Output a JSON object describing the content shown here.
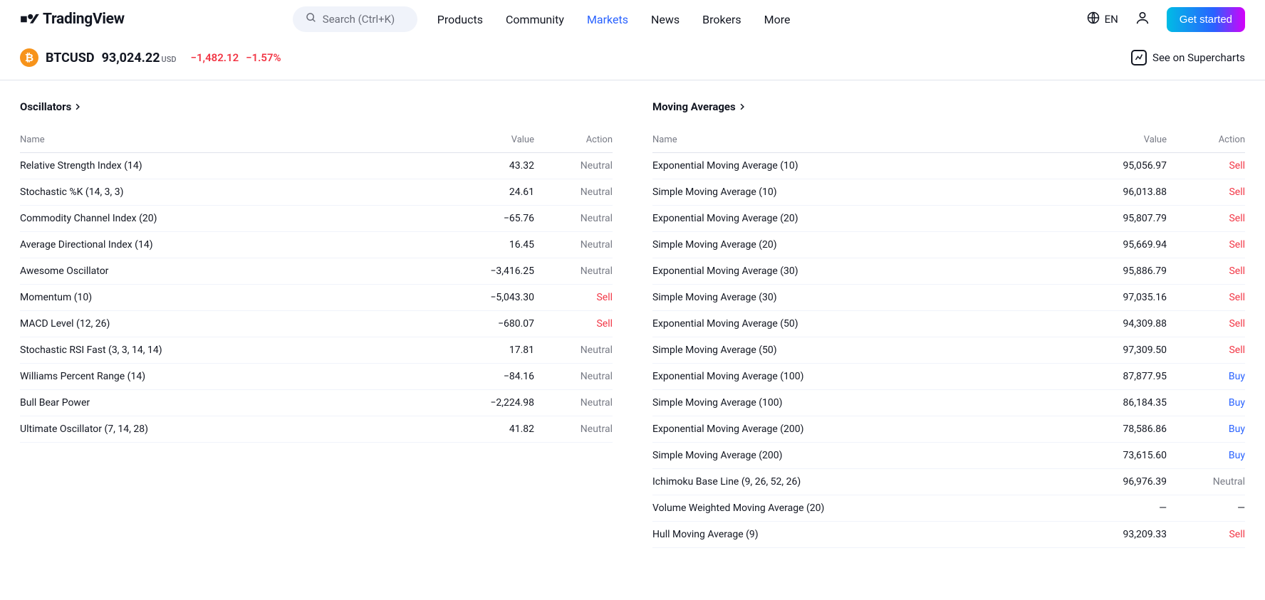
{
  "brand": "TradingView",
  "search": {
    "placeholder": "Search (Ctrl+K)"
  },
  "nav": {
    "products": "Products",
    "community": "Community",
    "markets": "Markets",
    "news": "News",
    "brokers": "Brokers",
    "more": "More"
  },
  "lang": "EN",
  "cta": "Get started",
  "ticker": {
    "symbol": "BTCUSD",
    "price": "93,024.22",
    "unit": "USD",
    "change_abs": "−1,482.12",
    "change_pct": "−1.57%",
    "supercharts": "See on Supercharts"
  },
  "colors": {
    "accent": "#2962ff",
    "sell": "#f23645",
    "buy": "#2962ff",
    "neutral": "#787b86",
    "coin": "#f7931a"
  },
  "oscillators": {
    "title": "Oscillators",
    "columns": {
      "name": "Name",
      "value": "Value",
      "action": "Action"
    },
    "rows": [
      {
        "name": "Relative Strength Index (14)",
        "value": "43.32",
        "action": "Neutral"
      },
      {
        "name": "Stochastic %K (14, 3, 3)",
        "value": "24.61",
        "action": "Neutral"
      },
      {
        "name": "Commodity Channel Index (20)",
        "value": "−65.76",
        "action": "Neutral"
      },
      {
        "name": "Average Directional Index (14)",
        "value": "16.45",
        "action": "Neutral"
      },
      {
        "name": "Awesome Oscillator",
        "value": "−3,416.25",
        "action": "Neutral"
      },
      {
        "name": "Momentum (10)",
        "value": "−5,043.30",
        "action": "Sell"
      },
      {
        "name": "MACD Level (12, 26)",
        "value": "−680.07",
        "action": "Sell"
      },
      {
        "name": "Stochastic RSI Fast (3, 3, 14, 14)",
        "value": "17.81",
        "action": "Neutral"
      },
      {
        "name": "Williams Percent Range (14)",
        "value": "−84.16",
        "action": "Neutral"
      },
      {
        "name": "Bull Bear Power",
        "value": "−2,224.98",
        "action": "Neutral"
      },
      {
        "name": "Ultimate Oscillator (7, 14, 28)",
        "value": "41.82",
        "action": "Neutral"
      }
    ]
  },
  "moving_averages": {
    "title": "Moving Averages",
    "columns": {
      "name": "Name",
      "value": "Value",
      "action": "Action"
    },
    "rows": [
      {
        "name": "Exponential Moving Average (10)",
        "value": "95,056.97",
        "action": "Sell"
      },
      {
        "name": "Simple Moving Average (10)",
        "value": "96,013.88",
        "action": "Sell"
      },
      {
        "name": "Exponential Moving Average (20)",
        "value": "95,807.79",
        "action": "Sell"
      },
      {
        "name": "Simple Moving Average (20)",
        "value": "95,669.94",
        "action": "Sell"
      },
      {
        "name": "Exponential Moving Average (30)",
        "value": "95,886.79",
        "action": "Sell"
      },
      {
        "name": "Simple Moving Average (30)",
        "value": "97,035.16",
        "action": "Sell"
      },
      {
        "name": "Exponential Moving Average (50)",
        "value": "94,309.88",
        "action": "Sell"
      },
      {
        "name": "Simple Moving Average (50)",
        "value": "97,309.50",
        "action": "Sell"
      },
      {
        "name": "Exponential Moving Average (100)",
        "value": "87,877.95",
        "action": "Buy"
      },
      {
        "name": "Simple Moving Average (100)",
        "value": "86,184.35",
        "action": "Buy"
      },
      {
        "name": "Exponential Moving Average (200)",
        "value": "78,586.86",
        "action": "Buy"
      },
      {
        "name": "Simple Moving Average (200)",
        "value": "73,615.60",
        "action": "Buy"
      },
      {
        "name": "Ichimoku Base Line (9, 26, 52, 26)",
        "value": "96,976.39",
        "action": "Neutral"
      },
      {
        "name": "Volume Weighted Moving Average (20)",
        "value": "—",
        "action": "—"
      },
      {
        "name": "Hull Moving Average (9)",
        "value": "93,209.33",
        "action": "Sell"
      }
    ]
  }
}
